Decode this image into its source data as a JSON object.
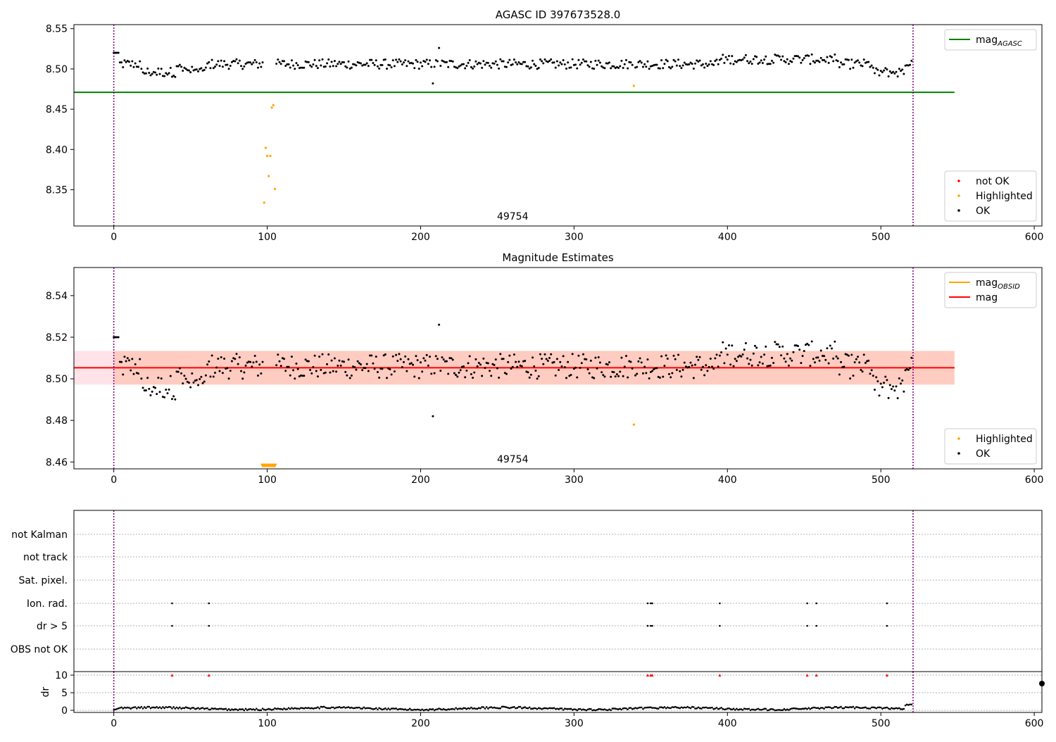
{
  "figure": {
    "colors": {
      "ok": "#000000",
      "highlighted": "#ffa500",
      "not_ok": "#ff0000",
      "agasc_line": "#008000",
      "mag_line": "#ff0000",
      "obsid_line": "#ffa500",
      "obsid_boundary": "#800080",
      "band_outer": "#ffc0cb",
      "band_inner": "#ffa07a"
    }
  },
  "chart_data": [
    {
      "id": "panel1",
      "type": "scatter",
      "title": "AGASC ID 397673528.0",
      "xlabel": "",
      "ylabel": "",
      "xlim": [
        -26,
        605
      ],
      "ylim": [
        8.305,
        8.555
      ],
      "xticks": [
        0,
        100,
        200,
        300,
        400,
        500,
        600
      ],
      "yticks": [
        8.35,
        8.4,
        8.45,
        8.5,
        8.55
      ],
      "tick_format": 2,
      "grid": false,
      "obsid_boundaries": [
        0,
        521
      ],
      "obsid_label": {
        "text": "49754",
        "x": 260
      },
      "reference_lines": [
        {
          "name": "mag_AGASC",
          "y": 8.471,
          "x_range": [
            -26,
            548
          ],
          "color": "#008000"
        }
      ],
      "series": [
        {
          "name": "not OK",
          "points": []
        },
        {
          "name": "Highlighted",
          "points": [
            [
              98,
              8.334
            ],
            [
              99,
              8.402
            ],
            [
              100,
              8.392
            ],
            [
              101,
              8.367
            ],
            [
              102,
              8.392
            ],
            [
              103,
              8.452
            ],
            [
              104,
              8.455
            ],
            [
              105,
              8.351
            ],
            [
              339,
              8.479
            ]
          ]
        },
        {
          "name": "OK",
          "baseline": 8.506,
          "n_points": 521,
          "excluded": [
            98,
            99,
            100,
            101,
            102,
            103,
            104,
            105,
            339
          ]
        }
      ],
      "legends": [
        {
          "placement": "upper right",
          "entries": [
            {
              "label": "mag",
              "sub": "AGASC",
              "kind": "line",
              "color": "#008000"
            }
          ]
        },
        {
          "placement": "lower right",
          "entries": [
            {
              "label": "not OK",
              "kind": "dot",
              "color": "#ff0000"
            },
            {
              "label": "Highlighted",
              "kind": "dot",
              "color": "#ffa500"
            },
            {
              "label": "OK",
              "kind": "dot",
              "color": "#000000"
            }
          ]
        }
      ]
    },
    {
      "id": "panel2",
      "type": "scatter",
      "title": "Magnitude Estimates",
      "xlabel": "",
      "ylabel": "",
      "xlim": [
        -26,
        605
      ],
      "ylim": [
        8.4567,
        8.5535
      ],
      "xticks": [
        0,
        100,
        200,
        300,
        400,
        500,
        600
      ],
      "yticks": [
        8.46,
        8.48,
        8.5,
        8.52,
        8.54
      ],
      "tick_format": 2,
      "grid": false,
      "obsid_boundaries": [
        0,
        521
      ],
      "obsid_label": {
        "text": "49754",
        "x": 260
      },
      "bands": [
        {
          "y_range": [
            8.4972,
            8.5134
          ],
          "x_range": [
            -26,
            548
          ],
          "outer_color": "#ffc0cb",
          "inner_x_range": [
            0,
            548
          ],
          "inner_color": "#ffa07a"
        }
      ],
      "reference_lines": [
        {
          "name": "mag",
          "y": 8.5053,
          "x_range": [
            -26,
            548
          ],
          "color": "#ff0000"
        }
      ],
      "series": [
        {
          "name": "Highlighted",
          "points": [
            [
              339,
              8.478
            ]
          ],
          "clipped_markers": {
            "x_range": [
              97,
              105
            ],
            "y": 8.4582
          }
        },
        {
          "name": "OK",
          "baseline": 8.506,
          "n_points": 521,
          "excluded": [
            98,
            99,
            100,
            101,
            102,
            103,
            104,
            105,
            339
          ]
        }
      ],
      "legends": [
        {
          "placement": "upper right",
          "entries": [
            {
              "label": "mag",
              "sub": "OBSID",
              "kind": "line",
              "color": "#ffa500"
            },
            {
              "label": "mag",
              "kind": "line",
              "color": "#ff0000"
            }
          ]
        },
        {
          "placement": "lower right",
          "entries": [
            {
              "label": "Highlighted",
              "kind": "dot",
              "color": "#ffa500"
            },
            {
              "label": "OK",
              "kind": "dot",
              "color": "#000000"
            }
          ]
        }
      ]
    },
    {
      "id": "panel3",
      "type": "scatter",
      "title": "",
      "xlabel": "",
      "ylabel": "",
      "xlim": [
        -26,
        605
      ],
      "categories": [
        "not Kalman",
        "not track",
        "Sat. pixel.",
        "Ion. rad.",
        "dr > 5",
        "OBS not OK"
      ],
      "grid": "horizontal dotted",
      "obsid_boundaries": [
        0,
        521
      ],
      "flags": [
        {
          "category": "Ion. rad.",
          "x": [
            38,
            62,
            348,
            350,
            351,
            395,
            452,
            458,
            504
          ]
        },
        {
          "category": "dr > 5",
          "x": [
            38,
            62,
            348,
            350,
            351,
            395,
            452,
            458,
            504
          ]
        }
      ]
    },
    {
      "id": "panel4",
      "type": "scatter",
      "title": "",
      "xlabel": "",
      "ylabel": "dr",
      "xlim": [
        -26,
        605
      ],
      "ylim": [
        -0.6,
        11.0
      ],
      "xticks": [
        0,
        100,
        200,
        300,
        400,
        500,
        600
      ],
      "yticks": [
        0,
        5,
        10
      ],
      "tick_format": 0,
      "grid": "horizontal dotted",
      "obsid_boundaries": [
        0,
        521
      ],
      "clipped_points": {
        "y": 10,
        "x": [
          38,
          62,
          348,
          350,
          351,
          395,
          452,
          458,
          504
        ],
        "color": "#ff0000"
      },
      "edge_point": {
        "x": 605,
        "y": 7.6
      },
      "series": [
        {
          "name": "dr",
          "n_points": 521,
          "baseline": 0.5
        }
      ]
    }
  ]
}
